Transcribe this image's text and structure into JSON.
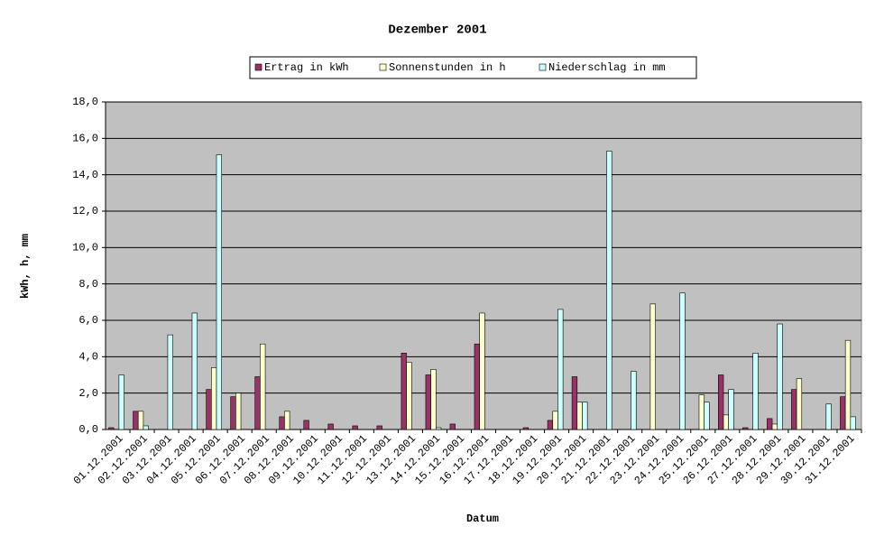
{
  "chart_data": {
    "type": "bar",
    "title": "Dezember 2001",
    "x_label": "Datum",
    "y_label": "kWh, h, mm",
    "categories": [
      "01.12.2001",
      "02.12.2001",
      "03.12.2001",
      "04.12.2001",
      "05.12.2001",
      "06.12.2001",
      "07.12.2001",
      "08.12.2001",
      "09.12.2001",
      "10.12.2001",
      "11.12.2001",
      "12.12.2001",
      "13.12.2001",
      "14.12.2001",
      "15.12.2001",
      "16.12.2001",
      "17.12.2001",
      "18.12.2001",
      "19.12.2001",
      "20.12.2001",
      "21.12.2001",
      "22.12.2001",
      "23.12.2001",
      "24.12.2001",
      "25.12.2001",
      "26.12.2001",
      "27.12.2001",
      "28.12.2001",
      "29.12.2001",
      "30.12.2001",
      "31.12.2001"
    ],
    "series": [
      {
        "name": "Ertrag in kWh",
        "color": "#993366",
        "values": [
          0.1,
          1.0,
          0,
          0,
          2.2,
          1.8,
          2.9,
          0.7,
          0.5,
          0.3,
          0.2,
          0.2,
          4.2,
          3.0,
          0.3,
          4.7,
          0,
          0.1,
          0.5,
          2.9,
          0,
          0,
          0,
          0,
          0,
          3.0,
          0.1,
          0.6,
          2.2,
          0,
          1.8
        ]
      },
      {
        "name": "Sonnenstunden in h",
        "color": "#ffffcc",
        "values": [
          0,
          1.0,
          0,
          0,
          3.4,
          2.0,
          4.7,
          1.0,
          0,
          0,
          0,
          0,
          3.7,
          3.3,
          0,
          6.4,
          0,
          0,
          1.0,
          1.5,
          0,
          0,
          6.9,
          0,
          1.9,
          0.8,
          0,
          0.3,
          2.8,
          0,
          4.9
        ]
      },
      {
        "name": "Niederschlag in mm",
        "color": "#ccffff",
        "values": [
          3.0,
          0.2,
          5.2,
          6.4,
          15.1,
          0,
          0,
          0,
          0,
          0,
          0,
          0,
          0,
          0.1,
          0,
          0,
          0,
          0,
          6.6,
          1.5,
          15.3,
          3.2,
          0,
          7.5,
          1.5,
          2.2,
          4.2,
          5.8,
          0,
          1.4,
          0.7
        ]
      }
    ],
    "ylim": [
      0,
      18
    ],
    "yticks": [
      {
        "value": 0,
        "label": "0,0"
      },
      {
        "value": 2,
        "label": "2,0"
      },
      {
        "value": 4,
        "label": "4,0"
      },
      {
        "value": 6,
        "label": "6,0"
      },
      {
        "value": 8,
        "label": "8,0"
      },
      {
        "value": 10,
        "label": "10,0"
      },
      {
        "value": 12,
        "label": "12,0"
      },
      {
        "value": 14,
        "label": "14,0"
      },
      {
        "value": 16,
        "label": "16,0"
      },
      {
        "value": 18,
        "label": "18,0"
      }
    ],
    "grid": true,
    "plot_background": "#c0c0c0",
    "legend": "top"
  }
}
